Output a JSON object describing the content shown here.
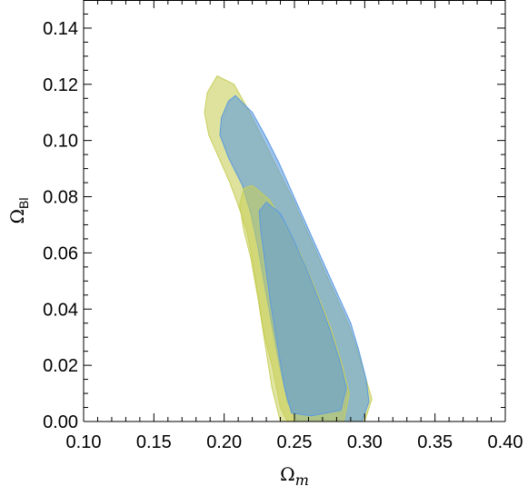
{
  "chart_data": {
    "type": "contour",
    "title": "",
    "xlabel": {
      "symbol": "Ω",
      "subscript": "m"
    },
    "ylabel": {
      "symbol": "Ω",
      "subscript": "Bl"
    },
    "xlim": [
      0.1,
      0.4
    ],
    "ylim": [
      0.0,
      0.15
    ],
    "xticks": [
      "0.10",
      "0.15",
      "0.20",
      "0.25",
      "0.30",
      "0.35",
      "0.40"
    ],
    "yticks": [
      "0.00",
      "0.02",
      "0.04",
      "0.06",
      "0.08",
      "0.10",
      "0.12",
      "0.14"
    ],
    "grid": false,
    "legend": "none",
    "series": [
      {
        "color": "#c8cf5a",
        "contours": [
          {
            "level": "2sigma",
            "points": [
              [
                0.195,
                0.123
              ],
              [
                0.207,
                0.12
              ],
              [
                0.216,
                0.112
              ],
              [
                0.224,
                0.104
              ],
              [
                0.232,
                0.096
              ],
              [
                0.24,
                0.088
              ],
              [
                0.248,
                0.08
              ],
              [
                0.256,
                0.071
              ],
              [
                0.264,
                0.062
              ],
              [
                0.272,
                0.053
              ],
              [
                0.281,
                0.043
              ],
              [
                0.289,
                0.034
              ],
              [
                0.295,
                0.025
              ],
              [
                0.301,
                0.015
              ],
              [
                0.305,
                0.008
              ],
              [
                0.3,
                0.0
              ],
              [
                0.27,
                0.0
              ],
              [
                0.245,
                0.0
              ],
              [
                0.24,
                0.005
              ],
              [
                0.234,
                0.02
              ],
              [
                0.229,
                0.03
              ],
              [
                0.224,
                0.045
              ],
              [
                0.22,
                0.058
              ],
              [
                0.216,
                0.068
              ],
              [
                0.21,
                0.077
              ],
              [
                0.204,
                0.085
              ],
              [
                0.197,
                0.093
              ],
              [
                0.189,
                0.102
              ],
              [
                0.186,
                0.11
              ],
              [
                0.188,
                0.117
              ]
            ]
          },
          {
            "level": "1sigma",
            "points": [
              [
                0.22,
                0.084
              ],
              [
                0.232,
                0.079
              ],
              [
                0.243,
                0.07
              ],
              [
                0.254,
                0.06
              ],
              [
                0.265,
                0.047
              ],
              [
                0.276,
                0.033
              ],
              [
                0.284,
                0.02
              ],
              [
                0.289,
                0.01
              ],
              [
                0.285,
                0.0
              ],
              [
                0.262,
                0.0
              ],
              [
                0.24,
                0.0
              ],
              [
                0.234,
                0.012
              ],
              [
                0.229,
                0.028
              ],
              [
                0.224,
                0.044
              ],
              [
                0.219,
                0.058
              ],
              [
                0.214,
                0.068
              ],
              [
                0.211,
                0.077
              ],
              [
                0.214,
                0.083
              ]
            ]
          }
        ]
      },
      {
        "color": "#5b9be0",
        "contours": [
          {
            "level": "2sigma",
            "points": [
              [
                0.208,
                0.116
              ],
              [
                0.22,
                0.11
              ],
              [
                0.23,
                0.101
              ],
              [
                0.239,
                0.092
              ],
              [
                0.247,
                0.083
              ],
              [
                0.255,
                0.074
              ],
              [
                0.263,
                0.065
              ],
              [
                0.272,
                0.055
              ],
              [
                0.281,
                0.045
              ],
              [
                0.29,
                0.035
              ],
              [
                0.296,
                0.025
              ],
              [
                0.301,
                0.015
              ],
              [
                0.303,
                0.007
              ],
              [
                0.298,
                0.0
              ],
              [
                0.27,
                0.0
              ],
              [
                0.252,
                0.0
              ],
              [
                0.245,
                0.007
              ],
              [
                0.239,
                0.021
              ],
              [
                0.234,
                0.034
              ],
              [
                0.229,
                0.048
              ],
              [
                0.224,
                0.062
              ],
              [
                0.219,
                0.074
              ],
              [
                0.213,
                0.084
              ],
              [
                0.203,
                0.094
              ],
              [
                0.197,
                0.102
              ],
              [
                0.198,
                0.108
              ],
              [
                0.203,
                0.114
              ]
            ]
          },
          {
            "level": "1sigma",
            "points": [
              [
                0.23,
                0.078
              ],
              [
                0.24,
                0.074
              ],
              [
                0.249,
                0.065
              ],
              [
                0.258,
                0.055
              ],
              [
                0.266,
                0.045
              ],
              [
                0.275,
                0.033
              ],
              [
                0.282,
                0.022
              ],
              [
                0.287,
                0.012
              ],
              [
                0.283,
                0.004
              ],
              [
                0.262,
                0.002
              ],
              [
                0.248,
                0.003
              ],
              [
                0.243,
                0.012
              ],
              [
                0.238,
                0.027
              ],
              [
                0.233,
                0.042
              ],
              [
                0.229,
                0.057
              ],
              [
                0.226,
                0.068
              ],
              [
                0.225,
                0.075
              ]
            ]
          }
        ]
      }
    ]
  }
}
